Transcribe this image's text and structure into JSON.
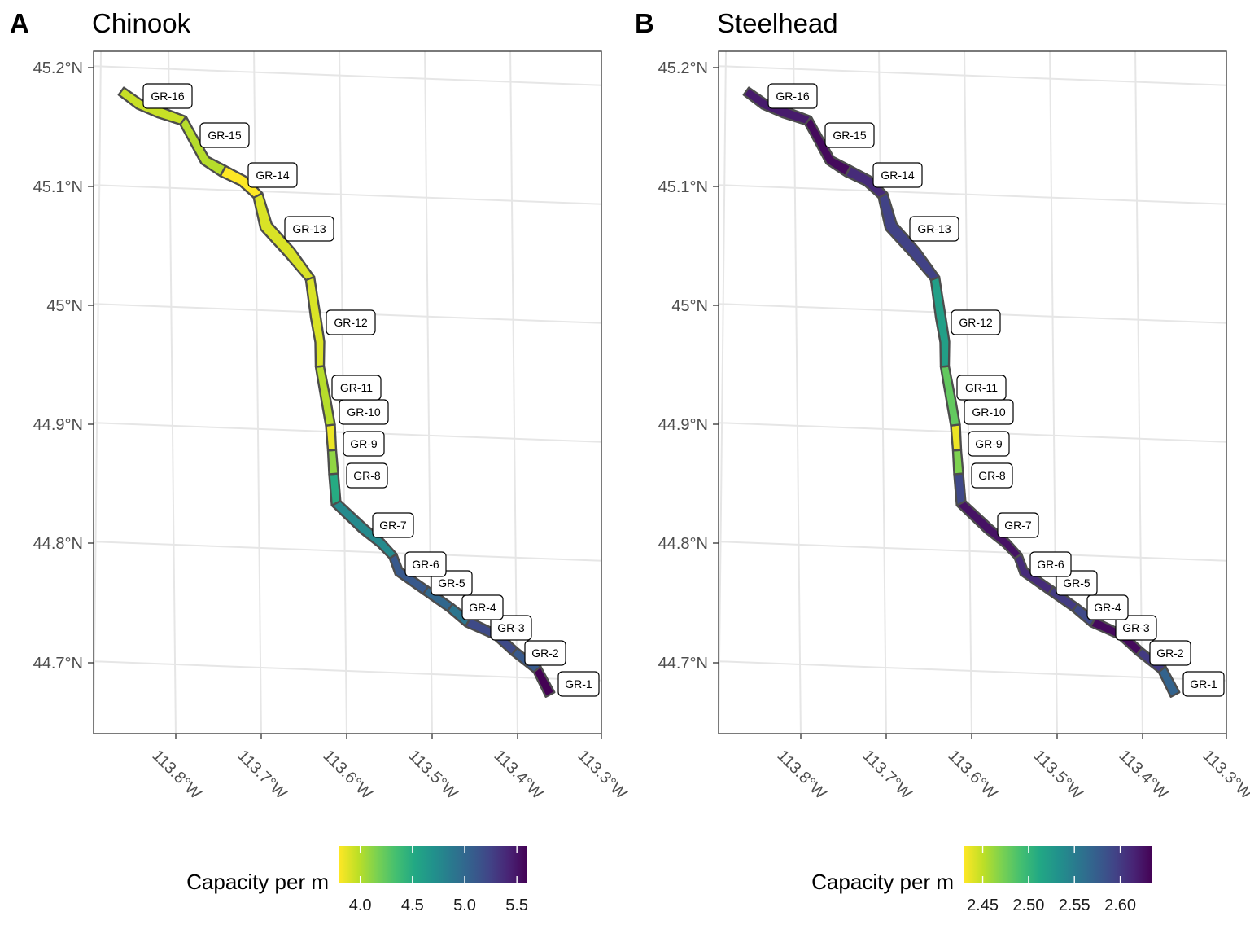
{
  "panels": [
    {
      "letter": "A",
      "title": "Chinook",
      "legend_title": "Capacity per m",
      "legend_ticks": [
        "4.0",
        "4.5",
        "5.0",
        "5.5"
      ],
      "palette": "viridis",
      "palette_reversed": true
    },
    {
      "letter": "B",
      "title": "Steelhead",
      "legend_title": "Capacity per m",
      "legend_ticks": [
        "2.45",
        "2.50",
        "2.55",
        "2.60"
      ],
      "palette": "viridis",
      "palette_reversed": true
    }
  ],
  "axes": {
    "lat_ticks": [
      "45.2°N",
      "45.1°N",
      "45°N",
      "44.9°N",
      "44.8°N",
      "44.7°N"
    ],
    "lon_ticks": [
      "113.8°W",
      "113.7°W",
      "113.6°W",
      "113.5°W",
      "113.4°W",
      "113.3°W"
    ],
    "grid": true
  },
  "chart_data": [
    {
      "type": "choropleth-map",
      "title": "Chinook",
      "legend_title": "Capacity per m",
      "color_scale": {
        "min": 3.8,
        "max": 5.6,
        "ticks": [
          4.0,
          4.5,
          5.0,
          5.5
        ]
      },
      "segments": [
        {
          "name": "GR-1",
          "value": 5.6
        },
        {
          "name": "GR-2",
          "value": 5.1
        },
        {
          "name": "GR-3",
          "value": 5.2
        },
        {
          "name": "GR-4",
          "value": 4.9
        },
        {
          "name": "GR-5",
          "value": 5.0
        },
        {
          "name": "GR-6",
          "value": 5.1
        },
        {
          "name": "GR-7",
          "value": 4.75
        },
        {
          "name": "GR-8",
          "value": 4.5
        },
        {
          "name": "GR-9",
          "value": 4.1
        },
        {
          "name": "GR-10",
          "value": 3.85
        },
        {
          "name": "GR-11",
          "value": 4.0
        },
        {
          "name": "GR-12",
          "value": 3.9
        },
        {
          "name": "GR-13",
          "value": 3.9
        },
        {
          "name": "GR-14",
          "value": 3.8
        },
        {
          "name": "GR-15",
          "value": 4.0
        },
        {
          "name": "GR-16",
          "value": 3.95
        }
      ]
    },
    {
      "type": "choropleth-map",
      "title": "Steelhead",
      "legend_title": "Capacity per m",
      "color_scale": {
        "min": 2.43,
        "max": 2.635,
        "ticks": [
          2.45,
          2.5,
          2.55,
          2.6
        ]
      },
      "segments": [
        {
          "name": "GR-1",
          "value": 2.57
        },
        {
          "name": "GR-2",
          "value": 2.6
        },
        {
          "name": "GR-3",
          "value": 2.63
        },
        {
          "name": "GR-4",
          "value": 2.59
        },
        {
          "name": "GR-5",
          "value": 2.6
        },
        {
          "name": "GR-6",
          "value": 2.61
        },
        {
          "name": "GR-7",
          "value": 2.625
        },
        {
          "name": "GR-8",
          "value": 2.59
        },
        {
          "name": "GR-9",
          "value": 2.47
        },
        {
          "name": "GR-10",
          "value": 2.435
        },
        {
          "name": "GR-11",
          "value": 2.48
        },
        {
          "name": "GR-12",
          "value": 2.52
        },
        {
          "name": "GR-13",
          "value": 2.595
        },
        {
          "name": "GR-14",
          "value": 2.61
        },
        {
          "name": "GR-15",
          "value": 2.63
        },
        {
          "name": "GR-16",
          "value": 2.62
        }
      ]
    }
  ]
}
